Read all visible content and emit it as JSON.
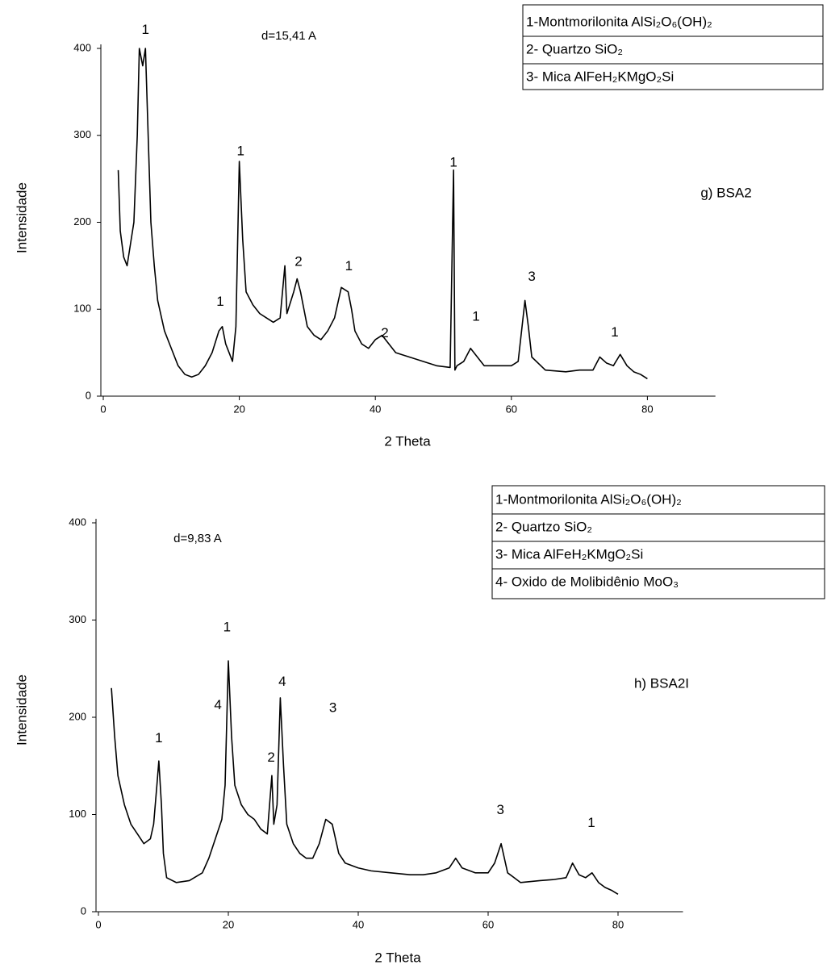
{
  "chart_data": [
    {
      "type": "line",
      "xlabel": "2 Theta",
      "ylabel": "Intensidade",
      "xlim": [
        0,
        90
      ],
      "ylim": [
        0,
        400
      ],
      "xticks": [
        0,
        20,
        40,
        60,
        80
      ],
      "yticks": [
        0,
        100,
        200,
        300,
        400
      ],
      "note": "d=15,41 A",
      "sample": "g) BSA2",
      "legend_items": [
        "1-Montmorilonita AlSi₂O₆(OH)₂",
        "2- Quartzo SiO₂",
        "3- Mica AlFeH₂KMgO₂Si"
      ],
      "series": [
        {
          "color": "#000000",
          "x": [
            2.2,
            2.5,
            3,
            3.5,
            4,
            4.5,
            5,
            5.3,
            5.8,
            6.2,
            6.6,
            7,
            7.5,
            8,
            9,
            10,
            11,
            12,
            13,
            14,
            15,
            16,
            17,
            17.5,
            18,
            19,
            19.5,
            20,
            20.5,
            21,
            22,
            23,
            24,
            25,
            26,
            26.7,
            27,
            28,
            28.5,
            29,
            30,
            31,
            32,
            33,
            34,
            35,
            36,
            36.5,
            37,
            38,
            39,
            40,
            41,
            42,
            43,
            45,
            47,
            49,
            51,
            51.5,
            51.7,
            52,
            53,
            54,
            55,
            56,
            58,
            60,
            61,
            62,
            62.5,
            63,
            65,
            68,
            70,
            72,
            73,
            74,
            75,
            76,
            77,
            78,
            79,
            80
          ],
          "values": [
            260,
            190,
            160,
            150,
            175,
            200,
            300,
            400,
            380,
            400,
            300,
            200,
            150,
            110,
            75,
            55,
            35,
            25,
            22,
            25,
            35,
            50,
            75,
            80,
            60,
            40,
            80,
            270,
            180,
            120,
            105,
            95,
            90,
            85,
            90,
            150,
            95,
            120,
            135,
            120,
            80,
            70,
            65,
            75,
            90,
            125,
            120,
            100,
            75,
            60,
            55,
            65,
            70,
            60,
            50,
            45,
            40,
            35,
            33,
            260,
            30,
            35,
            40,
            55,
            45,
            35,
            35,
            35,
            40,
            110,
            80,
            45,
            30,
            28,
            30,
            30,
            45,
            38,
            35,
            48,
            35,
            28,
            25,
            20
          ]
        }
      ],
      "annotations": [
        {
          "text": "1",
          "x": 6.2,
          "y": 421
        },
        {
          "text": "1",
          "x": 17.2,
          "y": 108
        },
        {
          "text": "1",
          "x": 20.2,
          "y": 281
        },
        {
          "text": "2",
          "x": 28.7,
          "y": 154
        },
        {
          "text": "1",
          "x": 36.1,
          "y": 149
        },
        {
          "text": "2",
          "x": 41.4,
          "y": 72
        },
        {
          "text": "1",
          "x": 51.5,
          "y": 268
        },
        {
          "text": "1",
          "x": 54.8,
          "y": 91
        },
        {
          "text": "3",
          "x": 63.0,
          "y": 137
        },
        {
          "text": "1",
          "x": 75.2,
          "y": 73
        }
      ]
    },
    {
      "type": "line",
      "xlabel": "2 Theta",
      "ylabel": "Intensidade",
      "xlim": [
        0,
        90
      ],
      "ylim": [
        0,
        400
      ],
      "xticks": [
        0,
        20,
        40,
        60,
        80
      ],
      "yticks": [
        0,
        100,
        200,
        300,
        400
      ],
      "note": "d=9,83 A",
      "sample": "h) BSA2I",
      "legend_items": [
        "1-Montmorilonita AlSi₂O₆(OH)₂",
        "2- Quartzo SiO₂",
        "3- Mica AlFeH₂KMgO₂Si",
        "4- Oxido de Molibidênio MoO₃"
      ],
      "series": [
        {
          "color": "#000000",
          "x": [
            2,
            2.5,
            3,
            4,
            5,
            6,
            7,
            8,
            8.5,
            9,
            9.3,
            9.7,
            10,
            10.5,
            12,
            14,
            16,
            17,
            18,
            19,
            19.5,
            20,
            20.5,
            21,
            22,
            23,
            24,
            25,
            26,
            26.7,
            27,
            27.5,
            28,
            28.5,
            29,
            30,
            31,
            32,
            33,
            34,
            35,
            36,
            37,
            38,
            40,
            42,
            45,
            48,
            50,
            52,
            54,
            55,
            56,
            58,
            60,
            61,
            62,
            62.5,
            63,
            65,
            68,
            70,
            72,
            73,
            74,
            75,
            76,
            77,
            78,
            79,
            80
          ],
          "values": [
            230,
            180,
            140,
            110,
            90,
            80,
            70,
            75,
            90,
            130,
            155,
            110,
            60,
            35,
            30,
            32,
            40,
            55,
            75,
            95,
            130,
            258,
            180,
            130,
            110,
            100,
            95,
            85,
            80,
            140,
            90,
            110,
            220,
            150,
            90,
            70,
            60,
            55,
            55,
            70,
            95,
            90,
            60,
            50,
            45,
            42,
            40,
            38,
            38,
            40,
            45,
            55,
            45,
            40,
            40,
            50,
            70,
            55,
            40,
            30,
            32,
            33,
            35,
            50,
            38,
            35,
            40,
            30,
            25,
            22,
            18
          ]
        }
      ],
      "annotations": [
        {
          "text": "1",
          "x": 9.3,
          "y": 178
        },
        {
          "text": "4",
          "x": 18.4,
          "y": 212
        },
        {
          "text": "1",
          "x": 19.8,
          "y": 292
        },
        {
          "text": "2",
          "x": 26.6,
          "y": 158
        },
        {
          "text": "4",
          "x": 28.3,
          "y": 236
        },
        {
          "text": "3",
          "x": 36.1,
          "y": 209
        },
        {
          "text": "3",
          "x": 61.9,
          "y": 104
        },
        {
          "text": "1",
          "x": 75.9,
          "y": 91
        }
      ]
    }
  ]
}
